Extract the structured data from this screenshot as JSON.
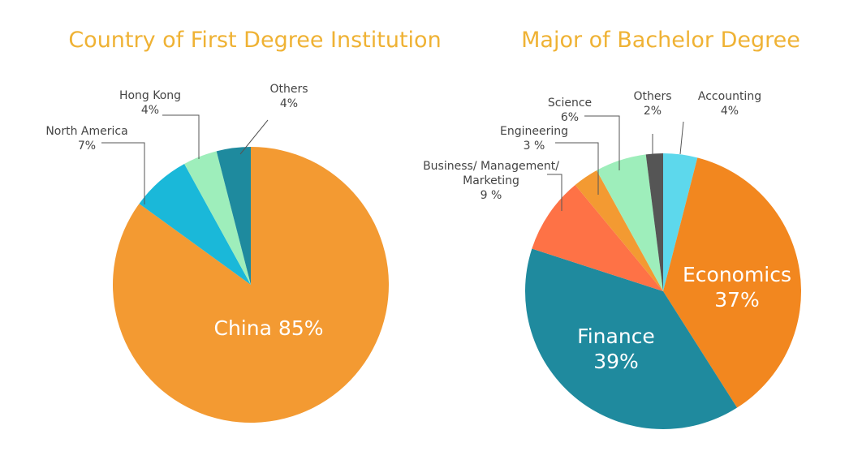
{
  "chart_data": [
    {
      "type": "pie",
      "title": "Country of First Degree Institution",
      "categories": [
        "China",
        "North America",
        "Hong Kong",
        "Others"
      ],
      "values": [
        85,
        7,
        4,
        4
      ],
      "value_labels": [
        "85%",
        "7%",
        "4%",
        "4%"
      ],
      "colors": [
        "#f39a32",
        "#1ab8d9",
        "#9eeebb",
        "#1e8a9e"
      ]
    },
    {
      "type": "pie",
      "title": "Major of Bachelor Degree",
      "categories": [
        "Accounting",
        "Economics",
        "Finance",
        "Business/ Management/\nMarketing",
        "Engineering",
        "Science",
        "Others"
      ],
      "values": [
        4,
        37,
        39,
        9,
        3,
        6,
        2
      ],
      "value_labels": [
        "4%",
        "37%",
        "39%",
        "9 %",
        "3 %",
        "6%",
        "2%"
      ],
      "colors": [
        "#5dd8ec",
        "#f2871f",
        "#1f8a9e",
        "#fe7246",
        "#f39a32",
        "#9eeebb",
        "#555555"
      ]
    }
  ]
}
